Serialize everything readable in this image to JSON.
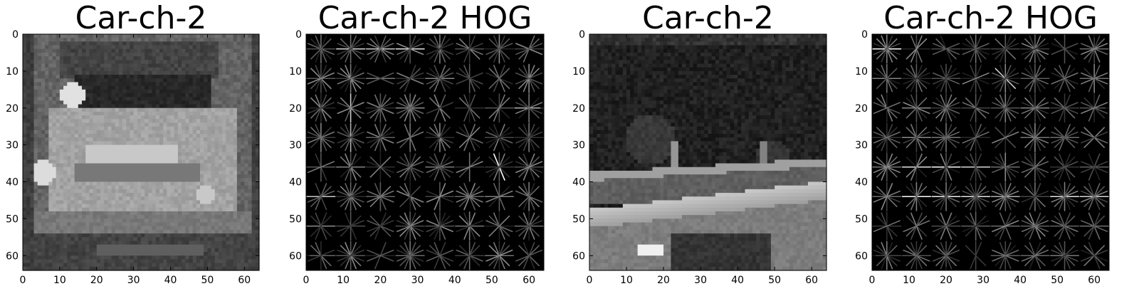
{
  "chart_data": [
    {
      "type": "heatmap",
      "title": "Car-ch-2",
      "xlabel": "",
      "ylabel": "",
      "xlim": [
        0,
        64
      ],
      "ylim": [
        64,
        0
      ],
      "xticks": [
        "0",
        "10",
        "20",
        "30",
        "40",
        "50",
        "60"
      ],
      "yticks": [
        "0",
        "10",
        "20",
        "30",
        "40",
        "50",
        "60"
      ],
      "colormap": "gray",
      "content": "grayscale photograph of a car rear view (channel 2)"
    },
    {
      "type": "heatmap",
      "title": "Car-ch-2 HOG",
      "xlabel": "",
      "ylabel": "",
      "xlim": [
        0,
        64
      ],
      "ylim": [
        64,
        0
      ],
      "xticks": [
        "0",
        "10",
        "20",
        "30",
        "40",
        "50",
        "60"
      ],
      "yticks": [
        "0",
        "10",
        "20",
        "30",
        "40",
        "50",
        "60"
      ],
      "colormap": "gray",
      "content": "HOG visualization, 8x8 grid of cells"
    },
    {
      "type": "heatmap",
      "title": "Car-ch-2",
      "xlabel": "",
      "ylabel": "",
      "xlim": [
        0,
        64
      ],
      "ylim": [
        64,
        0
      ],
      "xticks": [
        "0",
        "10",
        "20",
        "30",
        "40",
        "50",
        "60"
      ],
      "yticks": [
        "0",
        "10",
        "20",
        "30",
        "40",
        "50",
        "60"
      ],
      "colormap": "gray",
      "content": "grayscale photograph of a guardrail and car side (channel 2)"
    },
    {
      "type": "heatmap",
      "title": "Car-ch-2 HOG",
      "xlabel": "",
      "ylabel": "",
      "xlim": [
        0,
        64
      ],
      "ylim": [
        64,
        0
      ],
      "xticks": [
        "0",
        "10",
        "20",
        "30",
        "40",
        "50",
        "60"
      ],
      "yticks": [
        "0",
        "10",
        "20",
        "30",
        "40",
        "50",
        "60"
      ],
      "colormap": "gray",
      "content": "HOG visualization, 8x8 grid of cells"
    }
  ]
}
